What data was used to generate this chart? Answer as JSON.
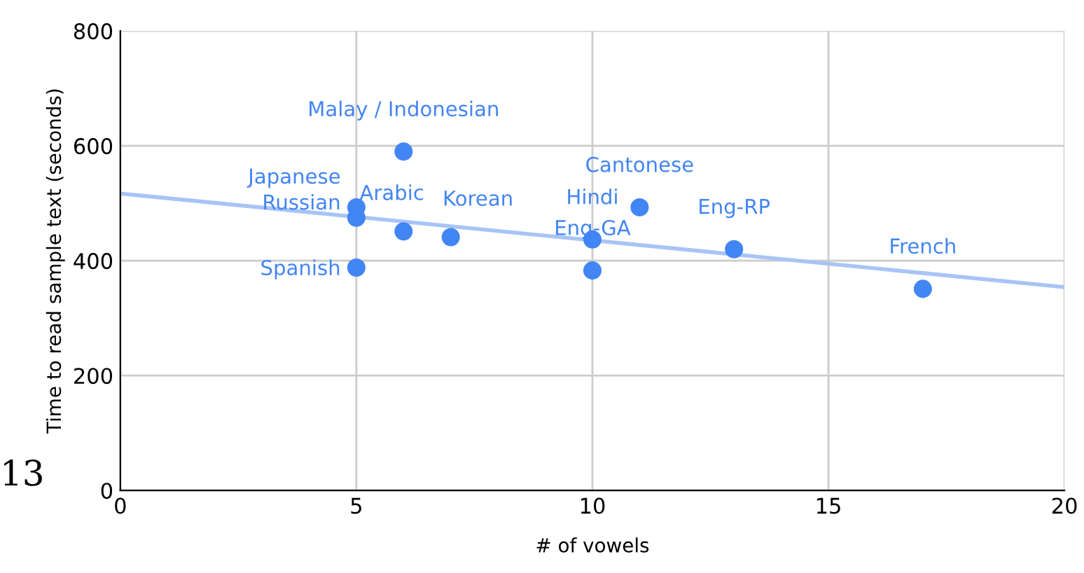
{
  "chart_data": {
    "type": "scatter",
    "xlabel": "# of vowels",
    "ylabel": "Time to read sample text (seconds)",
    "xlim": [
      0,
      20
    ],
    "xticks": [
      0,
      5,
      10,
      15,
      20
    ],
    "ylim": [
      0,
      800
    ],
    "yticks": [
      0,
      200,
      400,
      600,
      800
    ],
    "grid": true,
    "marker": "circle",
    "series": [
      {
        "color": "#4285f4",
        "x": [
          6,
          5,
          5,
          5,
          6,
          7,
          10,
          10,
          11,
          13,
          17
        ],
        "values": [
          590,
          493,
          475,
          388,
          451,
          441,
          437,
          383,
          493,
          420,
          351
        ]
      },
      {
        "type": "line",
        "color": "#a8c4f6",
        "x": [
          0,
          20
        ],
        "values": [
          517,
          354
        ],
        "marker": "none"
      }
    ],
    "annotations": [
      {
        "text": "Malay / Indonesian",
        "x": 6,
        "y": 590
      },
      {
        "text": "Japanese",
        "x": 5,
        "y": 493
      },
      {
        "text": "Russian",
        "x": 5,
        "y": 475
      },
      {
        "text": "Spanish",
        "x": 5,
        "y": 388
      },
      {
        "text": "Arabic",
        "x": 6,
        "y": 451
      },
      {
        "text": "Korean",
        "x": 7,
        "y": 441
      },
      {
        "text": "Hindi",
        "x": 10,
        "y": 437
      },
      {
        "text": "Eng-GA",
        "x": 10,
        "y": 383
      },
      {
        "text": "Cantonese",
        "x": 11,
        "y": 493
      },
      {
        "text": "Eng-RP",
        "x": 13,
        "y": 420
      },
      {
        "text": "French",
        "x": 17,
        "y": 351
      },
      "13"
    ]
  }
}
